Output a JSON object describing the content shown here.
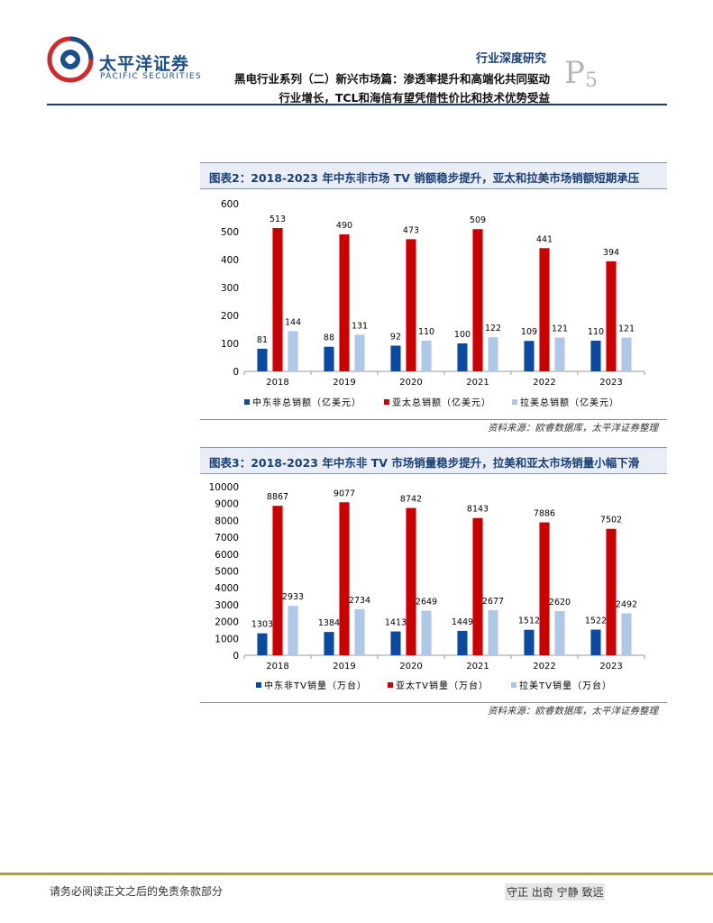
{
  "header": {
    "company_cn": "太平洋证券",
    "company_en": "PACIFIC SECURITIES",
    "report_type": "行业深度研究",
    "page_letter": "P",
    "page_number": "5",
    "title_line1": "黑电行业系列（二）新兴市场篇：渗透率提升和高端化共同驱动",
    "title_line2": "行业增长，TCL和海信有望凭借性价比和技术优势受益"
  },
  "figures": [
    {
      "title": "图表2：2018-2023 年中东非市场 TV 销额稳步提升，亚太和拉美市场销额短期承压",
      "source": "资料来源：欧睿数据库，太平洋证券整理"
    },
    {
      "title": "图表3：2018-2023 年中东非 TV 市场销量稳步提升，拉美和亚太市场销量小幅下滑",
      "source": "资料来源：欧睿数据库，太平洋证券整理"
    }
  ],
  "chart_data": [
    {
      "type": "bar",
      "categories": [
        "2018",
        "2019",
        "2020",
        "2021",
        "2022",
        "2023"
      ],
      "series": [
        {
          "name": "中东非总销额（亿美元）",
          "color": "#0b4aa3",
          "values": [
            81,
            88,
            92,
            100,
            109,
            110
          ]
        },
        {
          "name": "亚太总销额（亿美元）",
          "color": "#cc0000",
          "values": [
            513,
            490,
            473,
            509,
            441,
            394
          ]
        },
        {
          "name": "拉美总销额（亿美元）",
          "color": "#b0c8e8",
          "values": [
            144,
            131,
            110,
            122,
            121,
            121
          ]
        }
      ],
      "ylim": [
        0,
        600
      ],
      "yticks": [
        0,
        100,
        200,
        300,
        400,
        500,
        600
      ],
      "legend_position": "bottom",
      "grid": false
    },
    {
      "type": "bar",
      "categories": [
        "2018",
        "2019",
        "2020",
        "2021",
        "2022",
        "2023"
      ],
      "series": [
        {
          "name": "中东非TV销量（万台）",
          "color": "#0b4aa3",
          "values": [
            1303,
            1384,
            1413,
            1449,
            1512,
            1522
          ]
        },
        {
          "name": "亚太TV销量（万台）",
          "color": "#cc0000",
          "values": [
            8867,
            9077,
            8742,
            8143,
            7886,
            7502
          ]
        },
        {
          "name": "拉美TV销量（万台）",
          "color": "#b0c8e8",
          "values": [
            2933,
            2734,
            2649,
            2677,
            2620,
            2492
          ]
        }
      ],
      "ylim": [
        0,
        10000
      ],
      "yticks": [
        0,
        1000,
        2000,
        3000,
        4000,
        5000,
        6000,
        7000,
        8000,
        9000,
        10000
      ],
      "legend_position": "bottom",
      "grid": false
    }
  ],
  "footer": {
    "disclaimer": "请务必阅读正文之后的免责条款部分",
    "slogan": "守正  出奇  宁静  致远"
  }
}
